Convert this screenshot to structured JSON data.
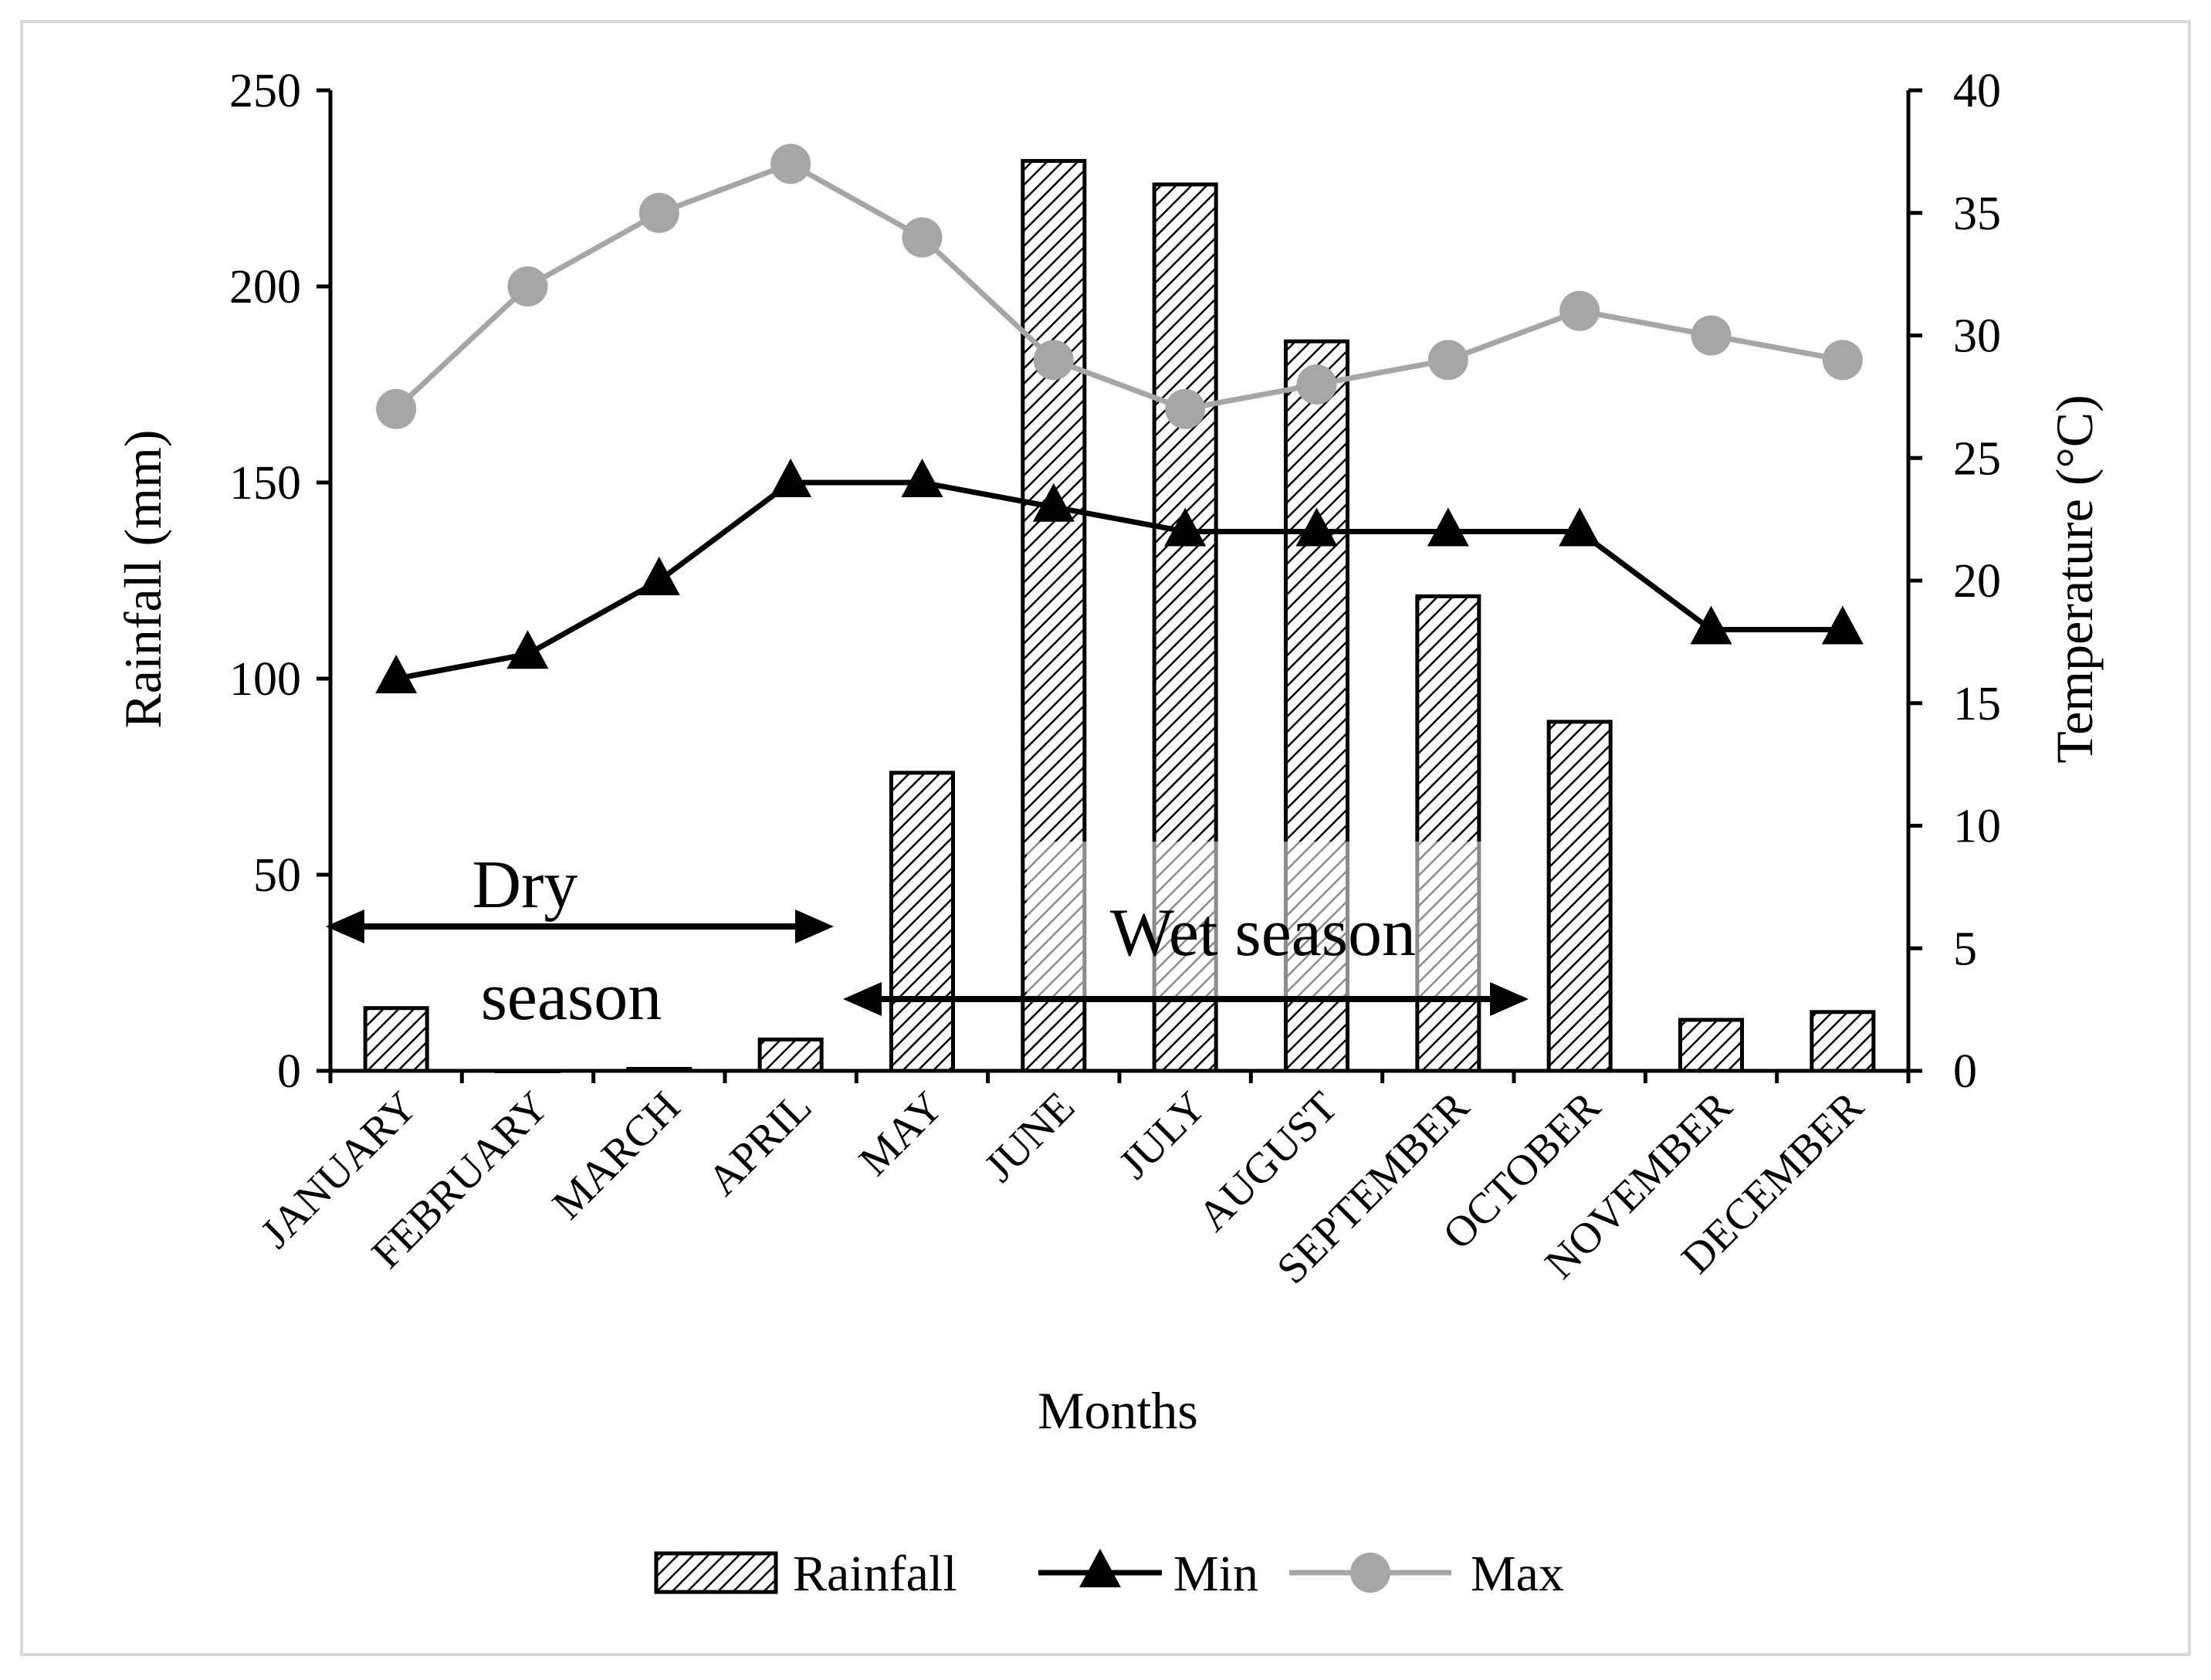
{
  "chart_data": {
    "type": "bar+line",
    "xlabel": "Months",
    "ylabel": "Rainfall (mm)",
    "y2label": "Temperature (°C)",
    "ylim": [
      0,
      250
    ],
    "y2lim": [
      0,
      40
    ],
    "yticks": [
      0,
      50,
      100,
      150,
      200,
      250
    ],
    "y2ticks": [
      0,
      5,
      10,
      15,
      20,
      25,
      30,
      35,
      40
    ],
    "categories": [
      "JANUARY",
      "FEBRUARY",
      "MARCH",
      "APRIL",
      "MAY",
      "JUNE",
      "JULY",
      "AUGUST",
      "SEPTEMBER",
      "OCTOBER",
      "NOVEMBER",
      "DECEMBER"
    ],
    "series": [
      {
        "name": "Rainfall",
        "type": "bar",
        "axis": "left",
        "values": [
          16,
          0,
          0.5,
          8,
          76,
          232,
          226,
          186,
          121,
          89,
          13,
          15
        ]
      },
      {
        "name": "Min",
        "type": "line",
        "axis": "right",
        "marker": "triangle",
        "color": "#000000",
        "values": [
          16,
          17,
          20,
          24,
          24,
          23,
          22,
          22,
          22,
          22,
          18,
          18
        ]
      },
      {
        "name": "Max",
        "type": "line",
        "axis": "right",
        "marker": "circle",
        "color": "#a6a6a6",
        "values": [
          27,
          32,
          35,
          37,
          34,
          29,
          27,
          28,
          29,
          31,
          30,
          29
        ]
      }
    ],
    "annotations": {
      "dry_line1": "Dry",
      "dry_line2": "season",
      "wet": "Wet season"
    },
    "legend": [
      "Rainfall",
      "Min",
      "Max"
    ]
  }
}
